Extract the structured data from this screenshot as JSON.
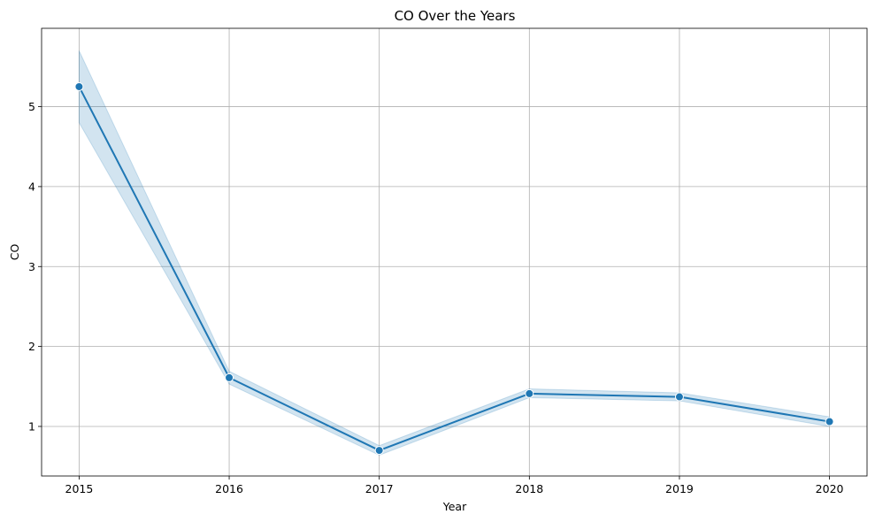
{
  "chart_data": {
    "type": "line",
    "title": "CO Over the Years",
    "xlabel": "Year",
    "ylabel": "CO",
    "x": [
      2015,
      2016,
      2017,
      2018,
      2019,
      2020
    ],
    "xlim": [
      2014.75,
      2020.25
    ],
    "ylim": [
      0.38,
      5.98
    ],
    "yticks": [
      1,
      2,
      3,
      4,
      5
    ],
    "grid": true,
    "series": [
      {
        "values": [
          5.25,
          1.61,
          0.7,
          1.41,
          1.37,
          1.06
        ],
        "ci_lower": [
          4.8,
          1.53,
          0.64,
          1.36,
          1.32,
          1.0
        ],
        "ci_upper": [
          5.7,
          1.69,
          0.76,
          1.47,
          1.42,
          1.12
        ],
        "color": "#1f77b4",
        "band_color": "#1f77b4",
        "band_opacity": 0.2,
        "marker": "circle"
      }
    ]
  }
}
